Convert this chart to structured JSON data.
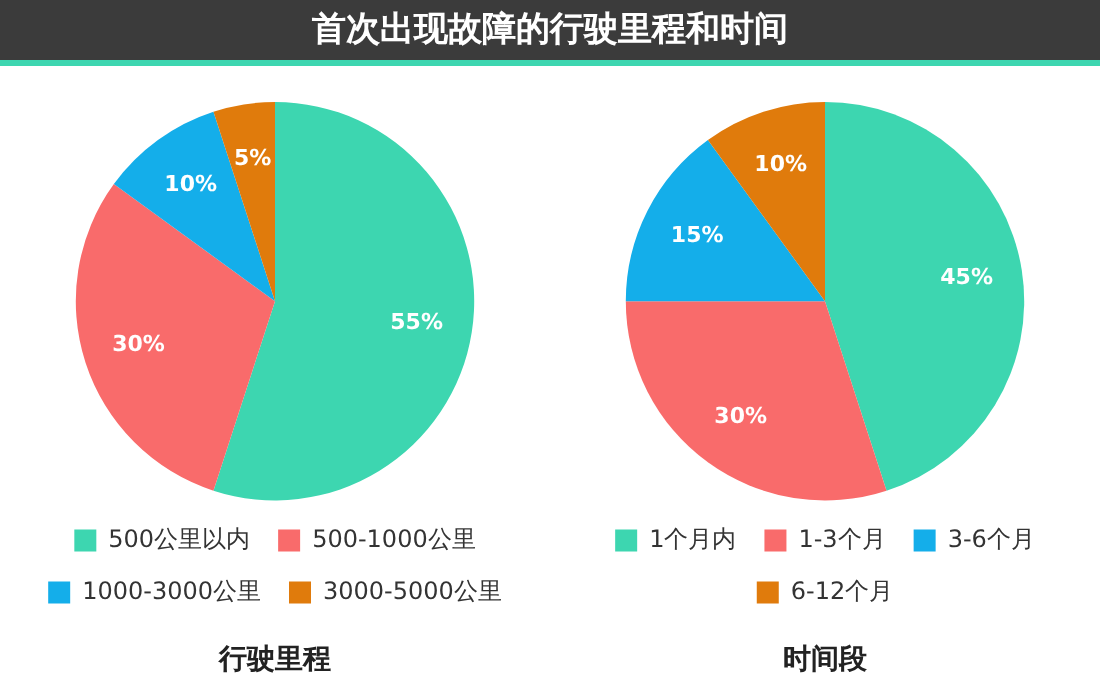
{
  "chart_data": [
    {
      "type": "other",
      "title": "首次出现故障的行驶里程和时间"
    },
    {
      "type": "pie",
      "title": "行驶里程",
      "categories": [
        "500公里以内",
        "500-1000公里",
        "1000-3000公里",
        "3000-5000公里"
      ],
      "values": [
        55,
        30,
        10,
        5
      ],
      "value_labels": [
        "55%",
        "30%",
        "10%",
        "5%"
      ],
      "colors": [
        "#3dd6b0",
        "#f96b6b",
        "#14aeea",
        "#e07b0c"
      ],
      "legend": "bottom"
    },
    {
      "type": "pie",
      "title": "时间段",
      "categories": [
        "1个月内",
        "1-3个月",
        "3-6个月",
        "6-12个月"
      ],
      "values": [
        45,
        30,
        15,
        10
      ],
      "value_labels": [
        "45%",
        "30%",
        "15%",
        "10%"
      ],
      "colors": [
        "#3dd6b0",
        "#f96b6b",
        "#14aeea",
        "#e07b0c"
      ],
      "legend": "bottom"
    }
  ]
}
